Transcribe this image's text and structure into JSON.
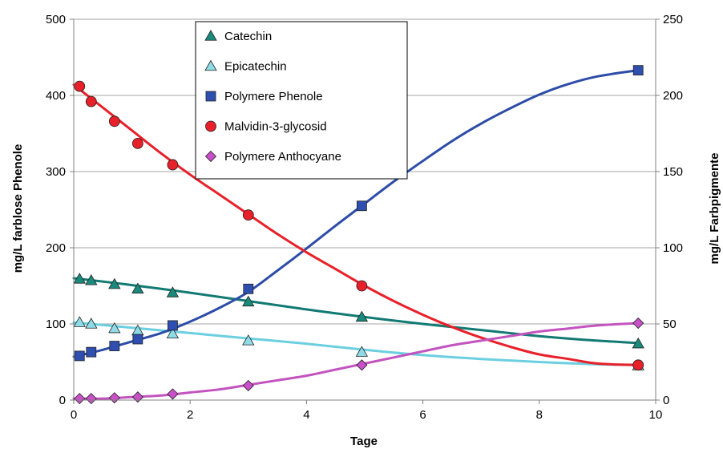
{
  "chart_data": {
    "type": "scatter",
    "xlabel": "Tage",
    "ylabel_left": "mg/L farblose Phenole",
    "ylabel_right": "mg/L Farbpigmente",
    "xlim": [
      0,
      10
    ],
    "ylim_left": [
      0,
      500
    ],
    "ylim_right": [
      0,
      250
    ],
    "x_ticks": [
      "0",
      "2",
      "4",
      "6",
      "8",
      "10"
    ],
    "y_ticks_left": [
      "0",
      "100",
      "200",
      "300",
      "400",
      "500"
    ],
    "y_ticks_right": [
      "0",
      "50",
      "100",
      "150",
      "200",
      "250"
    ],
    "grid": "horizontal",
    "legend_position": "top-center",
    "series": [
      {
        "name": "Catechin",
        "axis": "left",
        "marker": "triangle",
        "marker_color": "#1a8a7c",
        "line_color": "#127a73",
        "x": [
          0.1,
          0.3,
          0.7,
          1.1,
          1.7,
          3.0,
          4.95,
          9.7
        ],
        "y": [
          159,
          157,
          152,
          146,
          141,
          129,
          109,
          74
        ],
        "fit": [
          [
            0,
            160
          ],
          [
            1,
            151
          ],
          [
            2,
            141
          ],
          [
            3,
            130
          ],
          [
            4,
            119
          ],
          [
            5,
            109
          ],
          [
            6,
            100
          ],
          [
            7,
            92
          ],
          [
            8,
            84
          ],
          [
            9,
            78
          ],
          [
            9.7,
            75
          ]
        ]
      },
      {
        "name": "Epicatechin",
        "axis": "left",
        "marker": "triangle",
        "marker_color": "#8fdce8",
        "line_color": "#6ccfe0",
        "x": [
          0.1,
          0.3,
          0.7,
          1.1,
          1.7,
          3.0,
          4.95,
          9.7
        ],
        "y": [
          102,
          100,
          94,
          91,
          87,
          78,
          63,
          45
        ],
        "fit": [
          [
            0,
            102
          ],
          [
            1,
            95
          ],
          [
            2,
            88
          ],
          [
            3,
            81
          ],
          [
            4,
            74
          ],
          [
            5,
            66
          ],
          [
            6,
            59
          ],
          [
            7,
            54
          ],
          [
            8,
            50
          ],
          [
            9,
            47
          ],
          [
            9.7,
            46
          ]
        ]
      },
      {
        "name": "Polymere Phenole",
        "axis": "left",
        "marker": "square",
        "marker_color": "#2e4fb0",
        "line_color": "#2d4ca8",
        "x": [
          0.1,
          0.3,
          0.7,
          1.1,
          1.7,
          3.0,
          4.95,
          9.7
        ],
        "y": [
          58,
          63,
          71,
          80,
          98,
          146,
          255,
          433
        ],
        "fit": [
          [
            0,
            57
          ],
          [
            0.5,
            66
          ],
          [
            1,
            77
          ],
          [
            1.5,
            88
          ],
          [
            2,
            103
          ],
          [
            2.5,
            121
          ],
          [
            3,
            142
          ],
          [
            3.5,
            170
          ],
          [
            4,
            199
          ],
          [
            4.5,
            229
          ],
          [
            5,
            258
          ],
          [
            5.5,
            287
          ],
          [
            6,
            314
          ],
          [
            6.5,
            340
          ],
          [
            7,
            363
          ],
          [
            7.5,
            383
          ],
          [
            8,
            401
          ],
          [
            8.5,
            415
          ],
          [
            9,
            425
          ],
          [
            9.7,
            433
          ]
        ]
      },
      {
        "name": "Malvidin-3-glycosid",
        "axis": "right",
        "marker": "circle",
        "marker_color": "#e8202a",
        "line_color": "#e8202a",
        "x": [
          0.1,
          0.3,
          0.7,
          1.1,
          1.7,
          3.0,
          4.95,
          9.7
        ],
        "y": [
          206,
          196,
          183,
          168.5,
          154.5,
          121.5,
          75,
          23
        ],
        "fit": [
          [
            0,
            207
          ],
          [
            0.5,
            192
          ],
          [
            1,
            177
          ],
          [
            1.5,
            162
          ],
          [
            2,
            148
          ],
          [
            2.5,
            135
          ],
          [
            3,
            122
          ],
          [
            3.5,
            109
          ],
          [
            4,
            97
          ],
          [
            4.5,
            86
          ],
          [
            5,
            75
          ],
          [
            5.5,
            65
          ],
          [
            6,
            56
          ],
          [
            6.5,
            48
          ],
          [
            7,
            41
          ],
          [
            7.5,
            35
          ],
          [
            8,
            30
          ],
          [
            8.5,
            27
          ],
          [
            9,
            24
          ],
          [
            9.7,
            23
          ]
        ]
      },
      {
        "name": "Polymere Anthocyane",
        "axis": "right",
        "marker": "diamond",
        "marker_color": "#c850c8",
        "line_color": "#c354bf",
        "x": [
          0.1,
          0.3,
          0.7,
          1.1,
          1.7,
          3.0,
          4.95,
          9.7
        ],
        "y": [
          1,
          1,
          1.5,
          2,
          4,
          9.5,
          23,
          50.5
        ],
        "fit": [
          [
            0,
            1
          ],
          [
            0.5,
            1
          ],
          [
            1,
            2
          ],
          [
            1.5,
            3
          ],
          [
            2,
            5
          ],
          [
            2.5,
            7
          ],
          [
            3,
            10
          ],
          [
            3.5,
            13
          ],
          [
            4,
            16
          ],
          [
            4.5,
            20
          ],
          [
            5,
            24
          ],
          [
            5.5,
            28
          ],
          [
            6,
            32
          ],
          [
            6.5,
            36
          ],
          [
            7,
            39
          ],
          [
            7.5,
            42
          ],
          [
            8,
            45
          ],
          [
            8.5,
            47
          ],
          [
            9,
            49
          ],
          [
            9.7,
            50.5
          ]
        ]
      }
    ]
  }
}
